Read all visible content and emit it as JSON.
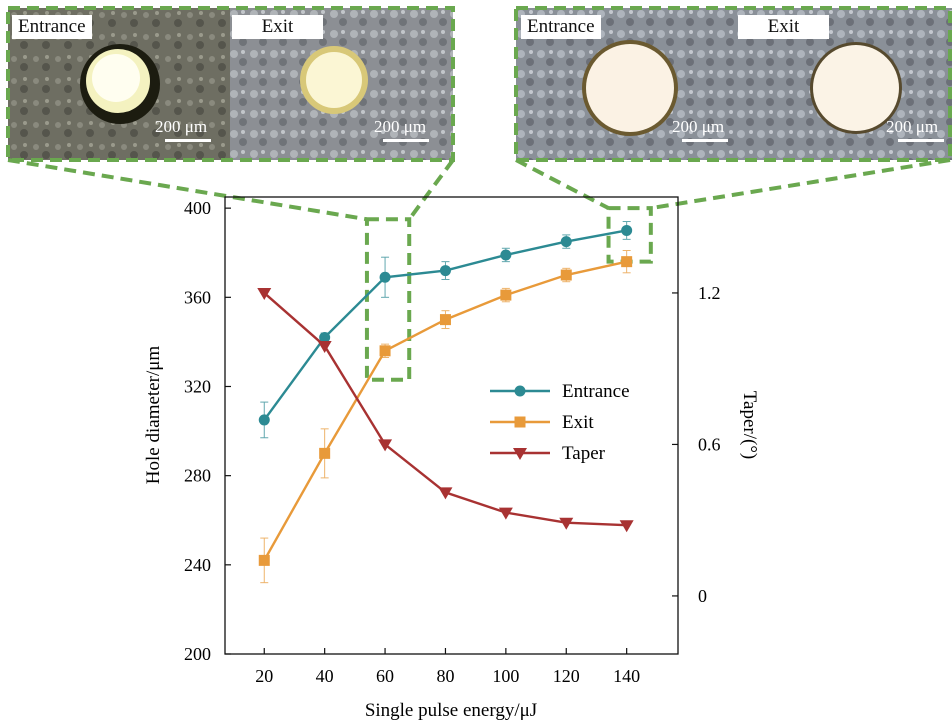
{
  "micrographs": {
    "left": {
      "entrance_label": "Entrance",
      "exit_label": "Exit",
      "scale_entrance": "200 μm",
      "scale_exit": "200 μm"
    },
    "right": {
      "entrance_label": "Entrance",
      "exit_label": "Exit",
      "scale_entrance": "200 μm",
      "scale_exit": "200 μm"
    }
  },
  "chart_data": {
    "type": "line",
    "xlabel": "Single pulse energy/μJ",
    "ylabel": "Hole diameter/μm",
    "y2label": "Taper/(°)",
    "x": [
      20,
      40,
      60,
      80,
      100,
      120,
      140
    ],
    "xticks": [
      "20",
      "40",
      "60",
      "80",
      "100",
      "120",
      "140"
    ],
    "xlim": [
      7,
      157
    ],
    "ylim": [
      200,
      405
    ],
    "yticks": [
      "200",
      "240",
      "280",
      "320",
      "360",
      "400"
    ],
    "y2lim": [
      -0.23,
      1.58
    ],
    "y2ticks": [
      "0",
      "0.6",
      "1.2"
    ],
    "grid": false,
    "legend_position": "center-right",
    "series": [
      {
        "name": "Entrance",
        "axis": "left",
        "marker": "circle",
        "color": "#2c8a93",
        "values": [
          305,
          342,
          369,
          372,
          379,
          385,
          390
        ],
        "errors": [
          8,
          2,
          9,
          4,
          3,
          3,
          4
        ]
      },
      {
        "name": "Exit",
        "axis": "left",
        "marker": "square",
        "color": "#e89a3a",
        "values": [
          242,
          290,
          336,
          350,
          361,
          370,
          376
        ],
        "errors": [
          10,
          11,
          3,
          4,
          3,
          3,
          5
        ]
      },
      {
        "name": "Taper",
        "axis": "right",
        "marker": "triangle-down",
        "color": "#a83232",
        "values": [
          1.2,
          0.99,
          0.6,
          0.41,
          0.33,
          0.29,
          0.28
        ],
        "errors": [
          0,
          0,
          0,
          0,
          0,
          0,
          0
        ]
      }
    ],
    "highlight_boxes": [
      {
        "x_range": [
          54,
          68
        ],
        "y_range": [
          323,
          395
        ]
      },
      {
        "x_range": [
          134,
          148
        ],
        "y_range": [
          376,
          400
        ]
      }
    ],
    "dash_color": "#6aa84f"
  }
}
